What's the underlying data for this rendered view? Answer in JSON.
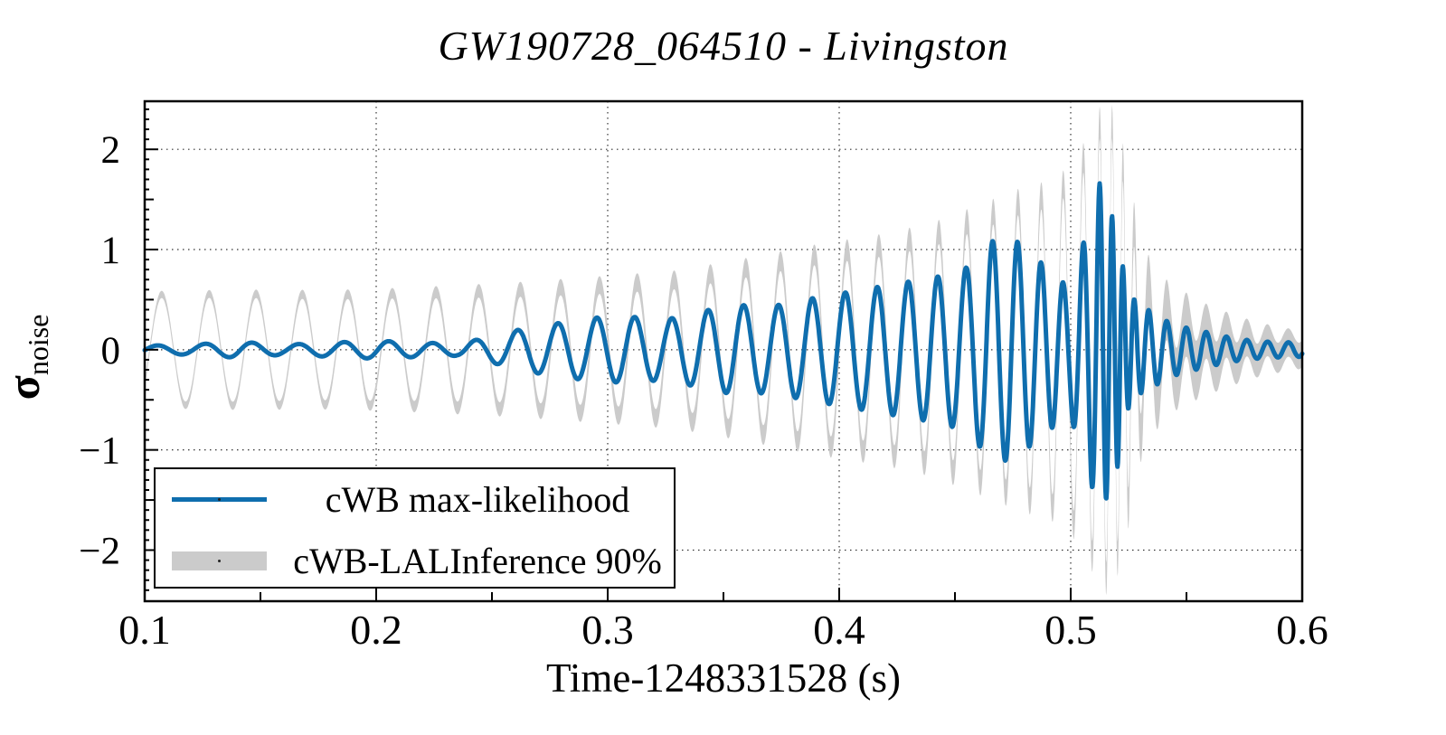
{
  "title": "GW190728_064510 - Livingston",
  "axes": {
    "xlabel": "Time-1248331528 (s)",
    "ylabel_symbol": "σ",
    "ylabel_subscript": "noise"
  },
  "legend": [
    {
      "label": "cWB max-likelihood",
      "swatch": "line",
      "color": "#0f6eae"
    },
    {
      "label": "cWB-LALInference 90%",
      "swatch": "band",
      "color": "#cbcbcb"
    }
  ],
  "colors": {
    "waveform_blue": "#0f6eae",
    "band_gray": "#cbcbcb",
    "grid": "#333333",
    "axis": "#000000",
    "background": "#ffffff"
  },
  "chart_data": {
    "type": "line",
    "title": "GW190728_064510 - Livingston",
    "xlabel": "Time-1248331528 (s)",
    "ylabel": "sigma_noise",
    "xlim": [
      0.1,
      0.6
    ],
    "ylim": [
      -2.51,
      2.48
    ],
    "grid": "dotted, on major ticks both axes",
    "legend_position": "lower left",
    "x_ticks": {
      "values": [
        0.1,
        0.2,
        0.3,
        0.4,
        0.5,
        0.6
      ],
      "labels": [
        "0.1",
        "0.2",
        "0.3",
        "0.4",
        "0.5",
        "0.6"
      ],
      "minor": [
        0.15,
        0.25,
        0.35,
        0.45,
        0.55
      ]
    },
    "y_ticks": {
      "values": [
        2,
        1,
        0,
        -1,
        -2
      ],
      "labels": [
        "2",
        "1",
        "0",
        "−1",
        "−2"
      ],
      "medium": [
        1.5,
        0.5,
        -0.5,
        -1.5
      ],
      "minor_step": 0.1
    },
    "series": [
      {
        "name": "cWB max-likelihood",
        "style": "line",
        "color": "#0f6eae",
        "model": "chirp",
        "peak_time": 0.5125,
        "peak_value": 1.66,
        "amplitude_keyframes": [
          [
            0.1,
            0.04
          ],
          [
            0.12,
            0.05
          ],
          [
            0.14,
            0.08
          ],
          [
            0.16,
            0.05
          ],
          [
            0.18,
            0.07
          ],
          [
            0.2,
            0.09
          ],
          [
            0.22,
            0.07
          ],
          [
            0.235,
            0.06
          ],
          [
            0.25,
            0.13
          ],
          [
            0.265,
            0.22
          ],
          [
            0.28,
            0.27
          ],
          [
            0.295,
            0.32
          ],
          [
            0.31,
            0.33
          ],
          [
            0.325,
            0.3
          ],
          [
            0.34,
            0.38
          ],
          [
            0.355,
            0.45
          ],
          [
            0.37,
            0.43
          ],
          [
            0.385,
            0.5
          ],
          [
            0.4,
            0.56
          ],
          [
            0.415,
            0.62
          ],
          [
            0.43,
            0.68
          ],
          [
            0.445,
            0.74
          ],
          [
            0.455,
            0.82
          ],
          [
            0.465,
            1.08
          ],
          [
            0.475,
            1.12
          ],
          [
            0.483,
            0.95
          ],
          [
            0.492,
            0.78
          ],
          [
            0.499,
            0.62
          ],
          [
            0.504,
            0.95
          ],
          [
            0.509,
            1.35
          ],
          [
            0.5125,
            1.66
          ],
          [
            0.516,
            1.45
          ],
          [
            0.52,
            1.2
          ],
          [
            0.524,
            0.62
          ],
          [
            0.529,
            0.45
          ],
          [
            0.535,
            0.38
          ],
          [
            0.542,
            0.28
          ],
          [
            0.55,
            0.22
          ],
          [
            0.558,
            0.18
          ],
          [
            0.565,
            0.14
          ],
          [
            0.575,
            0.1
          ],
          [
            0.585,
            0.08
          ],
          [
            0.6,
            0.07
          ]
        ],
        "frequency_keyframes_hz": [
          [
            0.1,
            48
          ],
          [
            0.16,
            50
          ],
          [
            0.22,
            53
          ],
          [
            0.26,
            56
          ],
          [
            0.3,
            61
          ],
          [
            0.34,
            64
          ],
          [
            0.38,
            68
          ],
          [
            0.42,
            74
          ],
          [
            0.45,
            82
          ],
          [
            0.47,
            92
          ],
          [
            0.49,
            103
          ],
          [
            0.5,
            112
          ],
          [
            0.505,
            122
          ],
          [
            0.509,
            140
          ],
          [
            0.5125,
            165
          ],
          [
            0.516,
            195
          ],
          [
            0.52,
            215
          ],
          [
            0.524,
            215
          ],
          [
            0.528,
            180
          ],
          [
            0.533,
            140
          ],
          [
            0.54,
            120
          ],
          [
            0.56,
            115
          ],
          [
            0.58,
            112
          ],
          [
            0.6,
            110
          ]
        ]
      },
      {
        "name": "cWB-LALInference 90%",
        "style": "band",
        "color": "#cbcbcb",
        "model": "chirp-envelope-band",
        "envelope_keyframes": [
          [
            0.1,
            0.55
          ],
          [
            0.14,
            0.56
          ],
          [
            0.18,
            0.55
          ],
          [
            0.22,
            0.57
          ],
          [
            0.26,
            0.6
          ],
          [
            0.3,
            0.65
          ],
          [
            0.33,
            0.7
          ],
          [
            0.36,
            0.82
          ],
          [
            0.39,
            0.95
          ],
          [
            0.42,
            1.05
          ],
          [
            0.44,
            1.15
          ],
          [
            0.46,
            1.32
          ],
          [
            0.48,
            1.5
          ],
          [
            0.49,
            1.55
          ],
          [
            0.5,
            1.7
          ],
          [
            0.505,
            1.9
          ],
          [
            0.509,
            2.05
          ],
          [
            0.513,
            2.3
          ],
          [
            0.518,
            2.28
          ],
          [
            0.522,
            1.95
          ],
          [
            0.526,
            1.45
          ],
          [
            0.53,
            0.9
          ],
          [
            0.536,
            0.55
          ],
          [
            0.545,
            0.3
          ],
          [
            0.555,
            0.2
          ],
          [
            0.57,
            0.14
          ],
          [
            0.59,
            0.08
          ],
          [
            0.6,
            0.06
          ]
        ],
        "halfwidth_keyframes": [
          [
            0.1,
            0.035
          ],
          [
            0.2,
            0.05
          ],
          [
            0.3,
            0.09
          ],
          [
            0.38,
            0.1
          ],
          [
            0.44,
            0.12
          ],
          [
            0.5,
            0.14
          ],
          [
            0.52,
            0.17
          ],
          [
            0.53,
            0.24
          ],
          [
            0.54,
            0.3
          ],
          [
            0.55,
            0.32
          ],
          [
            0.565,
            0.24
          ],
          [
            0.58,
            0.17
          ],
          [
            0.6,
            0.13
          ]
        ],
        "phase_lag_keyframes_rad": [
          [
            0.1,
            -0.55
          ],
          [
            0.4,
            -0.35
          ],
          [
            0.48,
            -0.1
          ],
          [
            0.505,
            0
          ],
          [
            0.6,
            0
          ]
        ]
      }
    ]
  }
}
